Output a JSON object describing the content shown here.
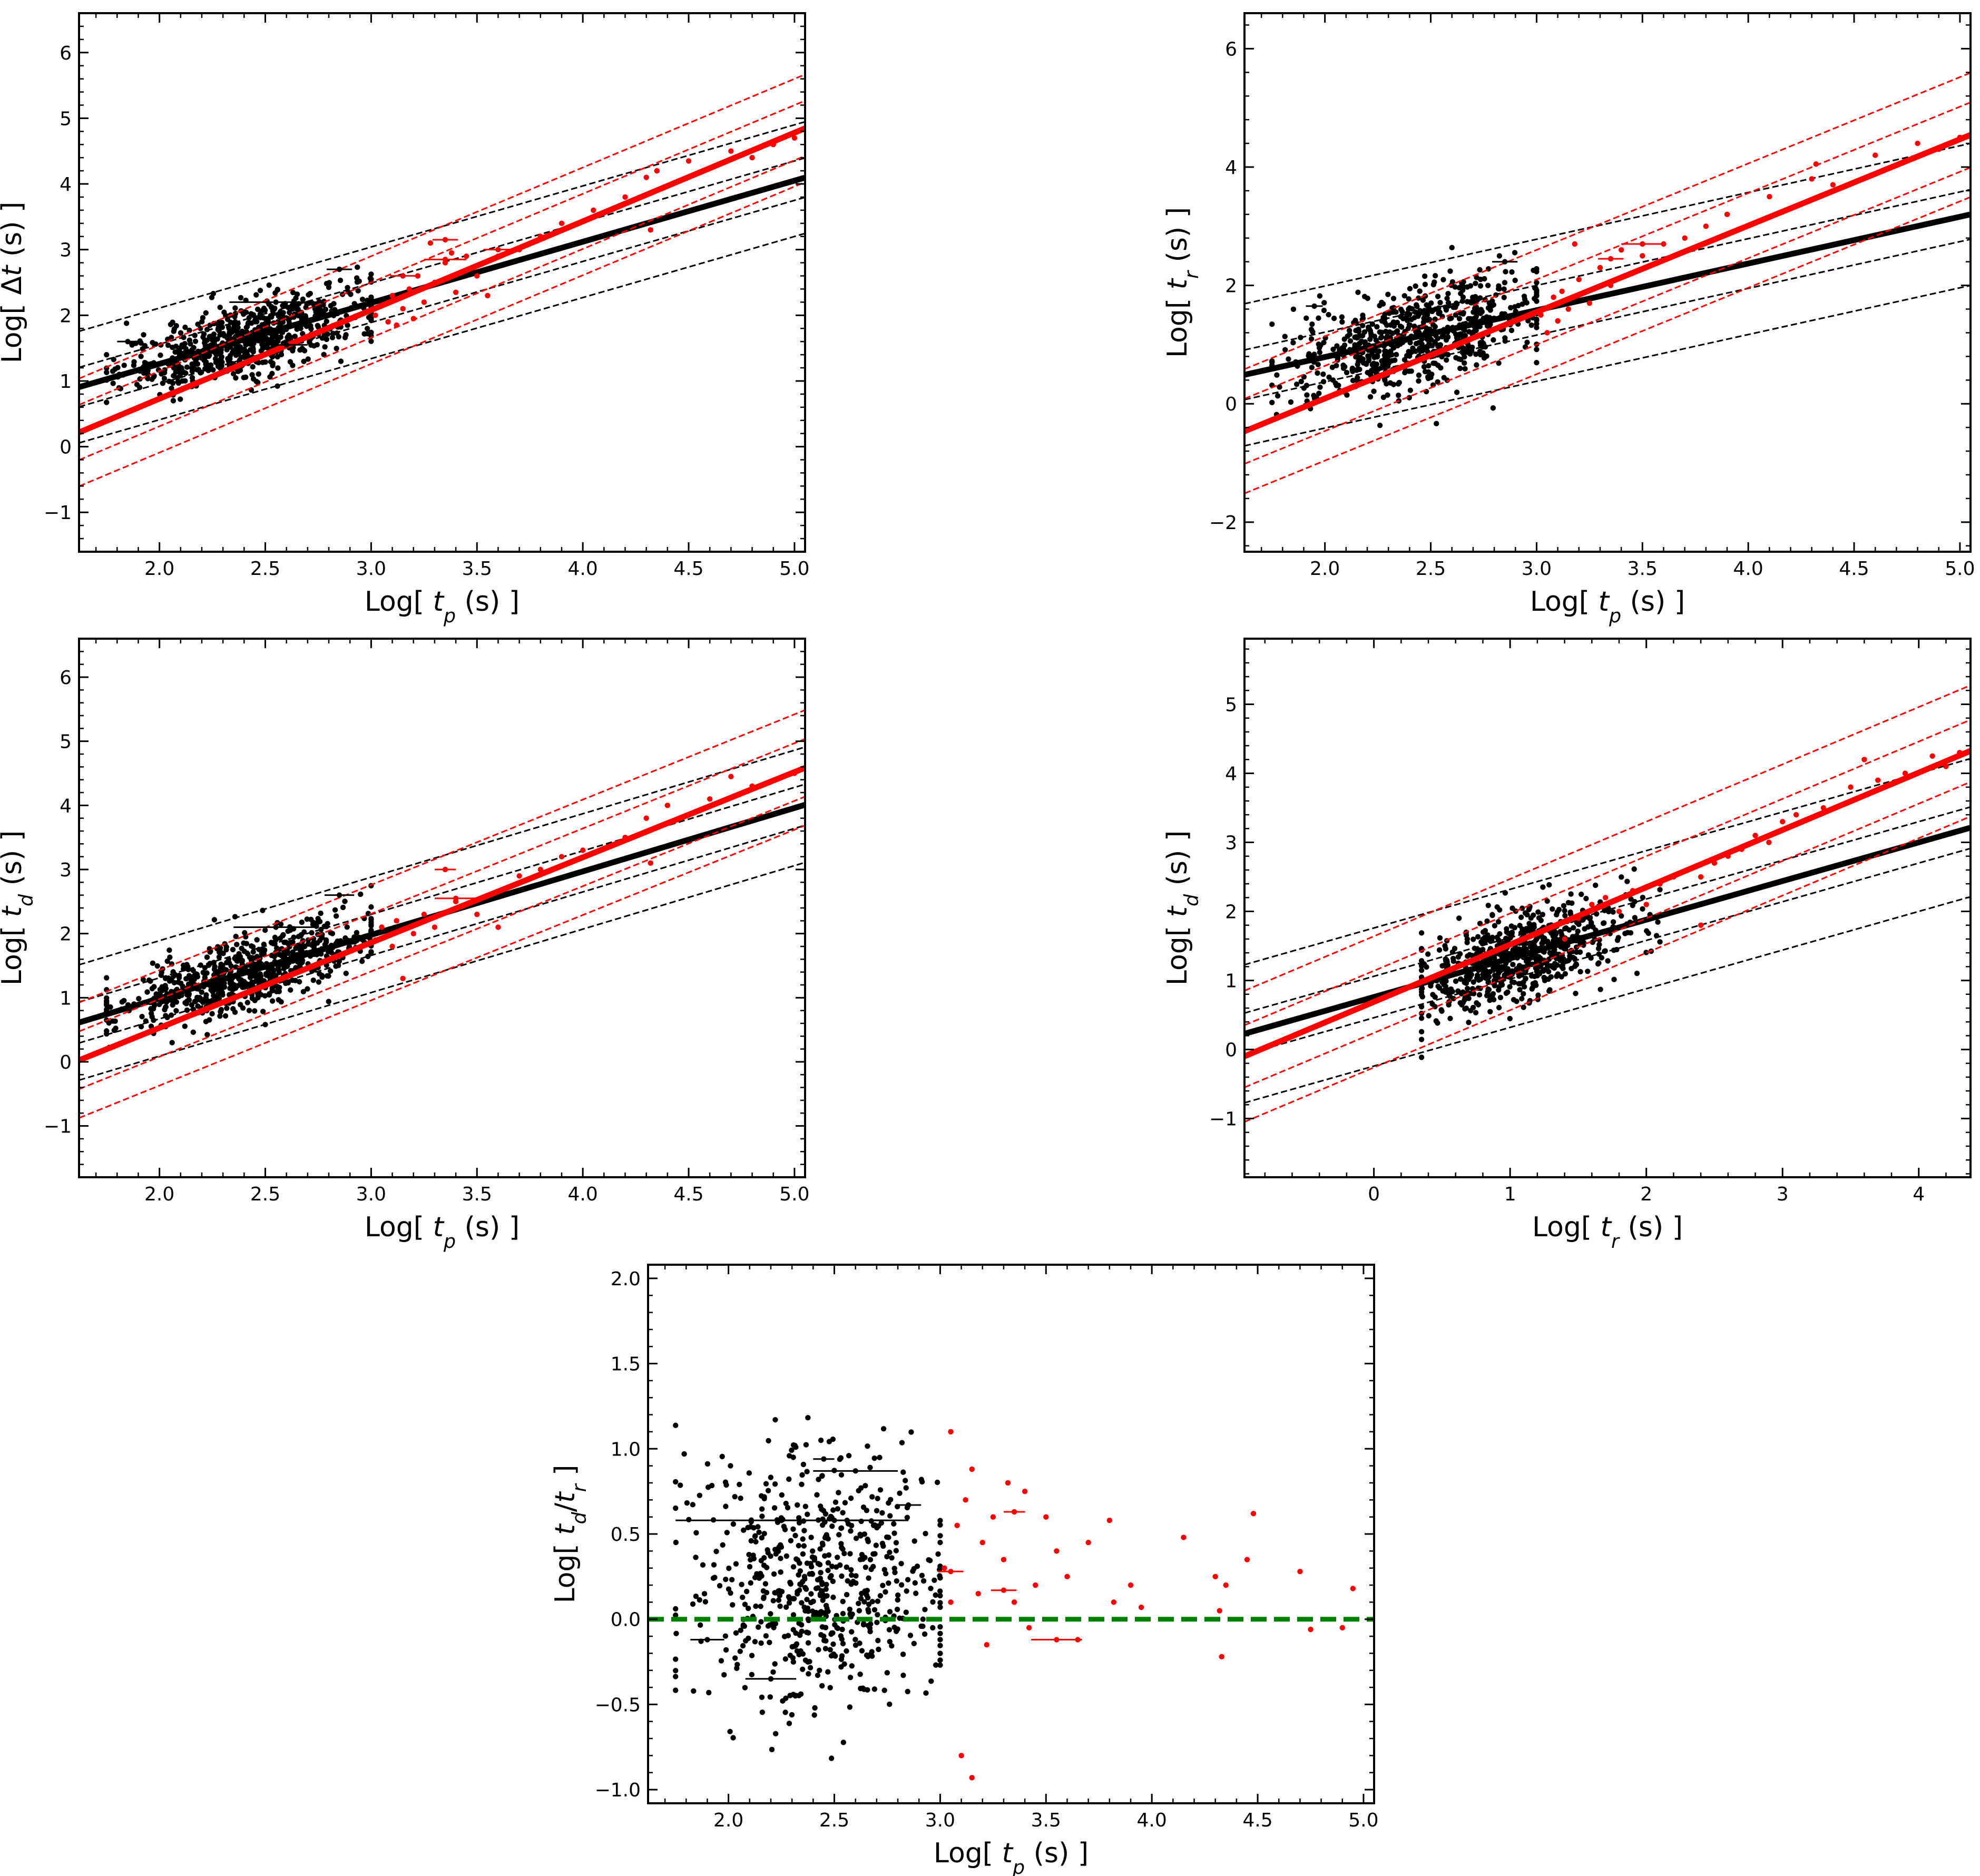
{
  "chart_data": [
    {
      "type": "scatter",
      "id": "p1",
      "xlabel_pre": "Log[ ",
      "xlabel_var": "t",
      "xlabel_sub": "p",
      "xlabel_post": " (s) ]",
      "ylabel_pre": "Log[ ",
      "ylabel_var": "Δt",
      "ylabel_sub": "",
      "ylabel_post": " (s) ]",
      "xlim": [
        1.62,
        5.05
      ],
      "ylim": [
        -1.6,
        6.6
      ],
      "xticks": [
        "2.0",
        "2.5",
        "3.0",
        "3.5",
        "4.0",
        "4.5",
        "5.0"
      ],
      "yticks": [
        "−1",
        "0",
        "1",
        "2",
        "3",
        "4",
        "5",
        "6"
      ],
      "black_fit": {
        "slope": 0.93,
        "intercept": -0.6,
        "offsets": [
          -0.85,
          -0.3,
          0.3,
          0.85
        ]
      },
      "red_fit": {
        "slope": 1.35,
        "intercept": -1.97,
        "offsets": [
          -0.82,
          -0.42,
          0.42,
          0.82
        ]
      },
      "black_cloud": {
        "x_mean": 2.42,
        "x_sd": 0.3,
        "x_range": [
          1.75,
          3.0
        ],
        "slope": 0.93,
        "intercept": -0.6,
        "y_sd": 0.28,
        "n": 700
      },
      "red_points": [
        [
          3.02,
          2.0
        ],
        [
          3.05,
          2.15
        ],
        [
          3.08,
          1.9
        ],
        [
          3.1,
          2.3
        ],
        [
          3.12,
          1.85
        ],
        [
          3.15,
          2.1
        ],
        [
          3.18,
          2.4
        ],
        [
          3.2,
          1.95
        ],
        [
          3.22,
          2.6
        ],
        [
          3.25,
          2.2
        ],
        [
          3.3,
          2.5
        ],
        [
          3.35,
          2.8
        ],
        [
          3.4,
          2.35
        ],
        [
          3.45,
          2.9
        ],
        [
          3.5,
          2.6
        ],
        [
          3.55,
          2.3
        ],
        [
          3.6,
          2.9
        ],
        [
          3.7,
          3.0
        ],
        [
          3.8,
          3.2
        ],
        [
          3.9,
          3.4
        ],
        [
          4.05,
          3.6
        ],
        [
          4.2,
          3.8
        ],
        [
          4.3,
          4.1
        ],
        [
          4.32,
          3.3
        ],
        [
          4.35,
          4.2
        ],
        [
          4.5,
          4.35
        ],
        [
          4.7,
          4.5
        ],
        [
          4.8,
          4.4
        ],
        [
          4.9,
          4.6
        ],
        [
          5.0,
          4.7
        ],
        [
          3.28,
          3.1
        ],
        [
          3.38,
          2.95
        ]
      ],
      "error_bars": [
        {
          "x": 2.55,
          "y": 2.2,
          "xerr": 0.22,
          "red": false
        },
        {
          "x": 2.85,
          "y": 2.7,
          "xerr": 0.06,
          "red": false
        },
        {
          "x": 2.6,
          "y": 1.55,
          "xerr": 0.1,
          "red": false
        },
        {
          "x": 1.85,
          "y": 1.6,
          "xerr": 0.05,
          "red": false
        },
        {
          "x": 3.15,
          "y": 2.6,
          "xerr": 0.06,
          "red": true
        },
        {
          "x": 3.35,
          "y": 3.15,
          "xerr": 0.06,
          "red": true
        },
        {
          "x": 3.35,
          "y": 2.85,
          "xerr": 0.1,
          "red": true
        },
        {
          "x": 3.6,
          "y": 3.0,
          "xerr": 0.07,
          "red": true
        }
      ]
    },
    {
      "type": "scatter",
      "id": "p2",
      "xlabel_pre": "Log[ ",
      "xlabel_var": "t",
      "xlabel_sub": "p",
      "xlabel_post": " (s) ]",
      "ylabel_pre": "Log[ ",
      "ylabel_var": "t",
      "ylabel_sub": "r",
      "ylabel_post": " (s) ]",
      "xlim": [
        1.62,
        5.05
      ],
      "ylim": [
        -2.5,
        6.6
      ],
      "xticks": [
        "2.0",
        "2.5",
        "3.0",
        "3.5",
        "4.0",
        "4.5",
        "5.0"
      ],
      "yticks": [
        "−2",
        "0",
        "2",
        "4",
        "6"
      ],
      "black_fit": {
        "slope": 0.79,
        "intercept": -0.79,
        "offsets": [
          -1.2,
          -0.42,
          0.42,
          1.2
        ]
      },
      "red_fit": {
        "slope": 1.46,
        "intercept": -2.83,
        "offsets": [
          -1.05,
          -0.55,
          0.55,
          1.05
        ]
      },
      "black_cloud": {
        "x_mean": 2.42,
        "x_sd": 0.3,
        "x_range": [
          1.75,
          3.0
        ],
        "slope": 0.79,
        "intercept": -0.79,
        "y_sd": 0.42,
        "n": 700
      },
      "red_points": [
        [
          3.02,
          1.5
        ],
        [
          3.05,
          1.2
        ],
        [
          3.08,
          1.8
        ],
        [
          3.1,
          1.4
        ],
        [
          3.12,
          1.9
        ],
        [
          3.15,
          1.6
        ],
        [
          3.2,
          2.1
        ],
        [
          3.25,
          1.7
        ],
        [
          3.3,
          2.3
        ],
        [
          3.35,
          2.0
        ],
        [
          3.4,
          2.6
        ],
        [
          3.5,
          2.5
        ],
        [
          3.6,
          2.7
        ],
        [
          3.7,
          2.8
        ],
        [
          3.8,
          3.0
        ],
        [
          3.9,
          3.2
        ],
        [
          4.1,
          3.5
        ],
        [
          4.3,
          3.8
        ],
        [
          4.32,
          4.05
        ],
        [
          4.4,
          3.7
        ],
        [
          4.6,
          4.2
        ],
        [
          4.8,
          4.4
        ],
        [
          4.9,
          4.3
        ],
        [
          5.0,
          4.5
        ],
        [
          3.18,
          2.7
        ],
        [
          3.45,
          2.2
        ]
      ],
      "error_bars": [
        {
          "x": 2.85,
          "y": 2.4,
          "xerr": 0.06,
          "red": false
        },
        {
          "x": 1.95,
          "y": 1.65,
          "xerr": 0.04,
          "red": false
        },
        {
          "x": 3.35,
          "y": 2.45,
          "xerr": 0.06,
          "red": true
        },
        {
          "x": 3.5,
          "y": 2.7,
          "xerr": 0.1,
          "red": true
        }
      ]
    },
    {
      "type": "scatter",
      "id": "p3",
      "xlabel_pre": "Log[ ",
      "xlabel_var": "t",
      "xlabel_sub": "p",
      "xlabel_post": " (s) ]",
      "ylabel_pre": "Log[ ",
      "ylabel_var": "t",
      "ylabel_sub": "d",
      "ylabel_post": " (s) ]",
      "xlim": [
        1.62,
        5.05
      ],
      "ylim": [
        -1.8,
        6.6
      ],
      "xticks": [
        "2.0",
        "2.5",
        "3.0",
        "3.5",
        "4.0",
        "4.5",
        "5.0"
      ],
      "yticks": [
        "−1",
        "0",
        "1",
        "2",
        "3",
        "4",
        "5",
        "6"
      ],
      "black_fit": {
        "slope": 0.99,
        "intercept": -0.99,
        "offsets": [
          -0.9,
          -0.32,
          0.32,
          0.9
        ]
      },
      "red_fit": {
        "slope": 1.33,
        "intercept": -2.13,
        "offsets": [
          -0.9,
          -0.45,
          0.45,
          0.9
        ]
      },
      "black_cloud": {
        "x_mean": 2.42,
        "x_sd": 0.3,
        "x_range": [
          1.75,
          3.0
        ],
        "slope": 0.99,
        "intercept": -0.99,
        "y_sd": 0.28,
        "n": 700
      },
      "red_points": [
        [
          3.02,
          1.9
        ],
        [
          3.05,
          2.1
        ],
        [
          3.1,
          1.8
        ],
        [
          3.12,
          2.2
        ],
        [
          3.15,
          1.3
        ],
        [
          3.2,
          2.0
        ],
        [
          3.25,
          2.3
        ],
        [
          3.3,
          2.1
        ],
        [
          3.4,
          2.5
        ],
        [
          3.5,
          2.3
        ],
        [
          3.6,
          2.1
        ],
        [
          3.7,
          2.9
        ],
        [
          3.8,
          3.0
        ],
        [
          3.9,
          3.2
        ],
        [
          4.0,
          3.3
        ],
        [
          4.2,
          3.5
        ],
        [
          4.3,
          3.8
        ],
        [
          4.32,
          3.1
        ],
        [
          4.4,
          4.0
        ],
        [
          4.6,
          4.1
        ],
        [
          4.7,
          4.45
        ],
        [
          4.8,
          4.3
        ],
        [
          5.0,
          4.5
        ]
      ],
      "error_bars": [
        {
          "x": 2.55,
          "y": 2.1,
          "xerr": 0.2,
          "red": false
        },
        {
          "x": 2.85,
          "y": 2.6,
          "xerr": 0.07,
          "red": false
        },
        {
          "x": 3.35,
          "y": 3.0,
          "xerr": 0.05,
          "red": true
        },
        {
          "x": 3.4,
          "y": 2.55,
          "xerr": 0.1,
          "red": true
        }
      ]
    },
    {
      "type": "scatter",
      "id": "p4",
      "xlabel_pre": "Log[ ",
      "xlabel_var": "t",
      "xlabel_sub": "r",
      "xlabel_post": " (s) ]",
      "ylabel_pre": "Log[ ",
      "ylabel_var": "t",
      "ylabel_sub": "d",
      "ylabel_post": " (s) ]",
      "xlim": [
        -0.95,
        4.38
      ],
      "ylim": [
        -1.85,
        5.95
      ],
      "xticks": [
        "0",
        "1",
        "2",
        "3",
        "4"
      ],
      "yticks": [
        "−1",
        "0",
        "1",
        "2",
        "3",
        "4",
        "5"
      ],
      "black_fit": {
        "slope": 0.56,
        "intercept": 0.76,
        "offsets": [
          -1.0,
          -0.3,
          0.3,
          1.0
        ]
      },
      "red_fit": {
        "slope": 0.83,
        "intercept": 0.69,
        "offsets": [
          -0.95,
          -0.45,
          0.45,
          0.95
        ]
      },
      "black_cloud": {
        "x_mean": 1.05,
        "x_sd": 0.42,
        "x_range": [
          0.35,
          2.1
        ],
        "slope": 0.56,
        "intercept": 0.76,
        "y_sd": 0.34,
        "n": 700
      },
      "red_points": [
        [
          1.5,
          1.9
        ],
        [
          1.6,
          2.1
        ],
        [
          1.7,
          2.2
        ],
        [
          1.8,
          2.0
        ],
        [
          1.9,
          2.3
        ],
        [
          2.0,
          2.1
        ],
        [
          2.1,
          2.4
        ],
        [
          2.2,
          2.5
        ],
        [
          2.3,
          2.6
        ],
        [
          2.4,
          2.5
        ],
        [
          2.5,
          2.7
        ],
        [
          2.6,
          2.8
        ],
        [
          2.7,
          2.9
        ],
        [
          2.8,
          3.1
        ],
        [
          2.9,
          3.0
        ],
        [
          3.0,
          3.3
        ],
        [
          3.1,
          3.4
        ],
        [
          3.3,
          3.5
        ],
        [
          3.5,
          3.8
        ],
        [
          3.6,
          4.2
        ],
        [
          3.7,
          3.9
        ],
        [
          3.9,
          4.0
        ],
        [
          4.1,
          4.25
        ],
        [
          4.2,
          4.1
        ],
        [
          4.3,
          4.3
        ],
        [
          2.4,
          1.8
        ],
        [
          1.4,
          1.6
        ]
      ],
      "error_bars": []
    },
    {
      "type": "scatter",
      "id": "p5",
      "xlabel_pre": "Log[ ",
      "xlabel_var": "t",
      "xlabel_sub": "p",
      "xlabel_post": " (s) ]",
      "ylabel_pre": "Log[ ",
      "ylabel_var": "t",
      "ylabel_sub": "d",
      "ylabel_post": "/t_r ]",
      "ylabel_full": [
        "Log[ ",
        "t",
        "d",
        "/",
        "t",
        "r",
        " ]"
      ],
      "xlim": [
        1.62,
        5.05
      ],
      "ylim": [
        -1.08,
        2.08
      ],
      "xticks": [
        "2.0",
        "2.5",
        "3.0",
        "3.5",
        "4.0",
        "4.5",
        "5.0"
      ],
      "yticks": [
        "−1.0",
        "−0.5",
        "0.0",
        "0.5",
        "1.0",
        "1.5",
        "2.0"
      ],
      "hline": {
        "y": 0.0,
        "color": "#008000",
        "style": "dashed"
      },
      "black_cloud": {
        "x_mean": 2.42,
        "x_sd": 0.3,
        "x_range": [
          1.75,
          3.0
        ],
        "slope": 0.0,
        "intercept": 0.25,
        "y_sd": 0.38,
        "n": 650
      },
      "red_points": [
        [
          3.02,
          0.3
        ],
        [
          3.05,
          1.1
        ],
        [
          3.08,
          0.55
        ],
        [
          3.1,
          -0.8
        ],
        [
          3.12,
          0.7
        ],
        [
          3.15,
          0.88
        ],
        [
          3.18,
          0.15
        ],
        [
          3.2,
          0.45
        ],
        [
          3.22,
          -0.15
        ],
        [
          3.25,
          0.6
        ],
        [
          3.3,
          0.35
        ],
        [
          3.32,
          0.8
        ],
        [
          3.35,
          0.1
        ],
        [
          3.4,
          0.75
        ],
        [
          3.42,
          -0.05
        ],
        [
          3.45,
          0.2
        ],
        [
          3.5,
          0.6
        ],
        [
          3.55,
          0.4
        ],
        [
          3.6,
          0.25
        ],
        [
          3.65,
          -0.12
        ],
        [
          3.7,
          0.45
        ],
        [
          3.8,
          0.58
        ],
        [
          3.82,
          0.1
        ],
        [
          3.9,
          0.2
        ],
        [
          3.95,
          0.07
        ],
        [
          4.15,
          0.48
        ],
        [
          4.3,
          0.25
        ],
        [
          4.32,
          0.05
        ],
        [
          4.33,
          -0.22
        ],
        [
          4.35,
          0.2
        ],
        [
          4.45,
          0.35
        ],
        [
          4.48,
          0.62
        ],
        [
          4.7,
          0.28
        ],
        [
          4.75,
          -0.06
        ],
        [
          4.9,
          -0.05
        ],
        [
          4.95,
          0.18
        ],
        [
          3.15,
          -0.93
        ],
        [
          3.05,
          0.1
        ]
      ],
      "error_bars": [
        {
          "x": 2.25,
          "y": 0.58,
          "xerr": 0.5,
          "red": false
        },
        {
          "x": 2.6,
          "y": 0.87,
          "xerr": 0.2,
          "red": false
        },
        {
          "x": 2.5,
          "y": 0.58,
          "xerr": 0.35,
          "red": false
        },
        {
          "x": 2.45,
          "y": 0.94,
          "xerr": 0.05,
          "red": false
        },
        {
          "x": 2.85,
          "y": 0.67,
          "xerr": 0.06,
          "red": false
        },
        {
          "x": 2.2,
          "y": -0.35,
          "xerr": 0.12,
          "red": false
        },
        {
          "x": 1.9,
          "y": -0.12,
          "xerr": 0.08,
          "red": false
        },
        {
          "x": 3.05,
          "y": 0.28,
          "xerr": 0.06,
          "red": true
        },
        {
          "x": 3.35,
          "y": 0.63,
          "xerr": 0.05,
          "red": true
        },
        {
          "x": 3.55,
          "y": -0.12,
          "xerr": 0.12,
          "red": true
        },
        {
          "x": 3.3,
          "y": 0.17,
          "xerr": 0.06,
          "red": true
        }
      ]
    }
  ]
}
